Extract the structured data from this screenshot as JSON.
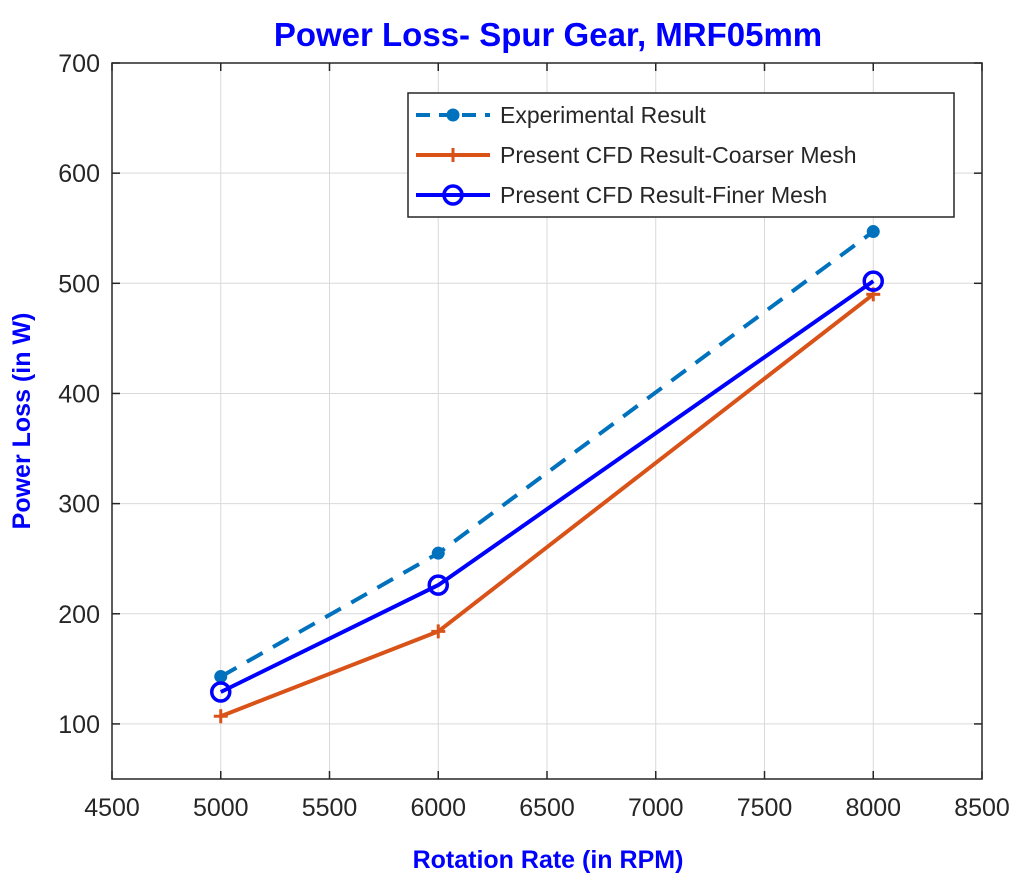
{
  "chart_data": {
    "type": "line",
    "title": "Power Loss- Spur Gear, MRF05mm",
    "xlabel": "Rotation Rate (in RPM)",
    "ylabel": "Power Loss (in W)",
    "xlim": [
      4500,
      8500
    ],
    "ylim": [
      50,
      700
    ],
    "xticks": [
      "4500",
      "5000",
      "5500",
      "6000",
      "6500",
      "7000",
      "7500",
      "8000",
      "8500"
    ],
    "yticks": [
      "100",
      "200",
      "300",
      "400",
      "500",
      "600",
      "700"
    ],
    "grid": true,
    "legend_position": "top-right",
    "x": [
      5000,
      6000,
      8000
    ],
    "series": [
      {
        "name": "Experimental Result",
        "values": [
          143,
          255,
          547
        ],
        "color": "#0072BD",
        "style": "dashed",
        "marker": "dot"
      },
      {
        "name": "Present CFD Result-Coarser Mesh",
        "values": [
          107,
          184,
          490
        ],
        "color": "#D95319",
        "style": "solid",
        "marker": "plus"
      },
      {
        "name": "Present CFD Result-Finer Mesh",
        "values": [
          129,
          226,
          502
        ],
        "color": "#0000FF",
        "style": "solid",
        "marker": "circle"
      }
    ],
    "title_color": "#0000FF",
    "label_color": "#0000FF"
  }
}
